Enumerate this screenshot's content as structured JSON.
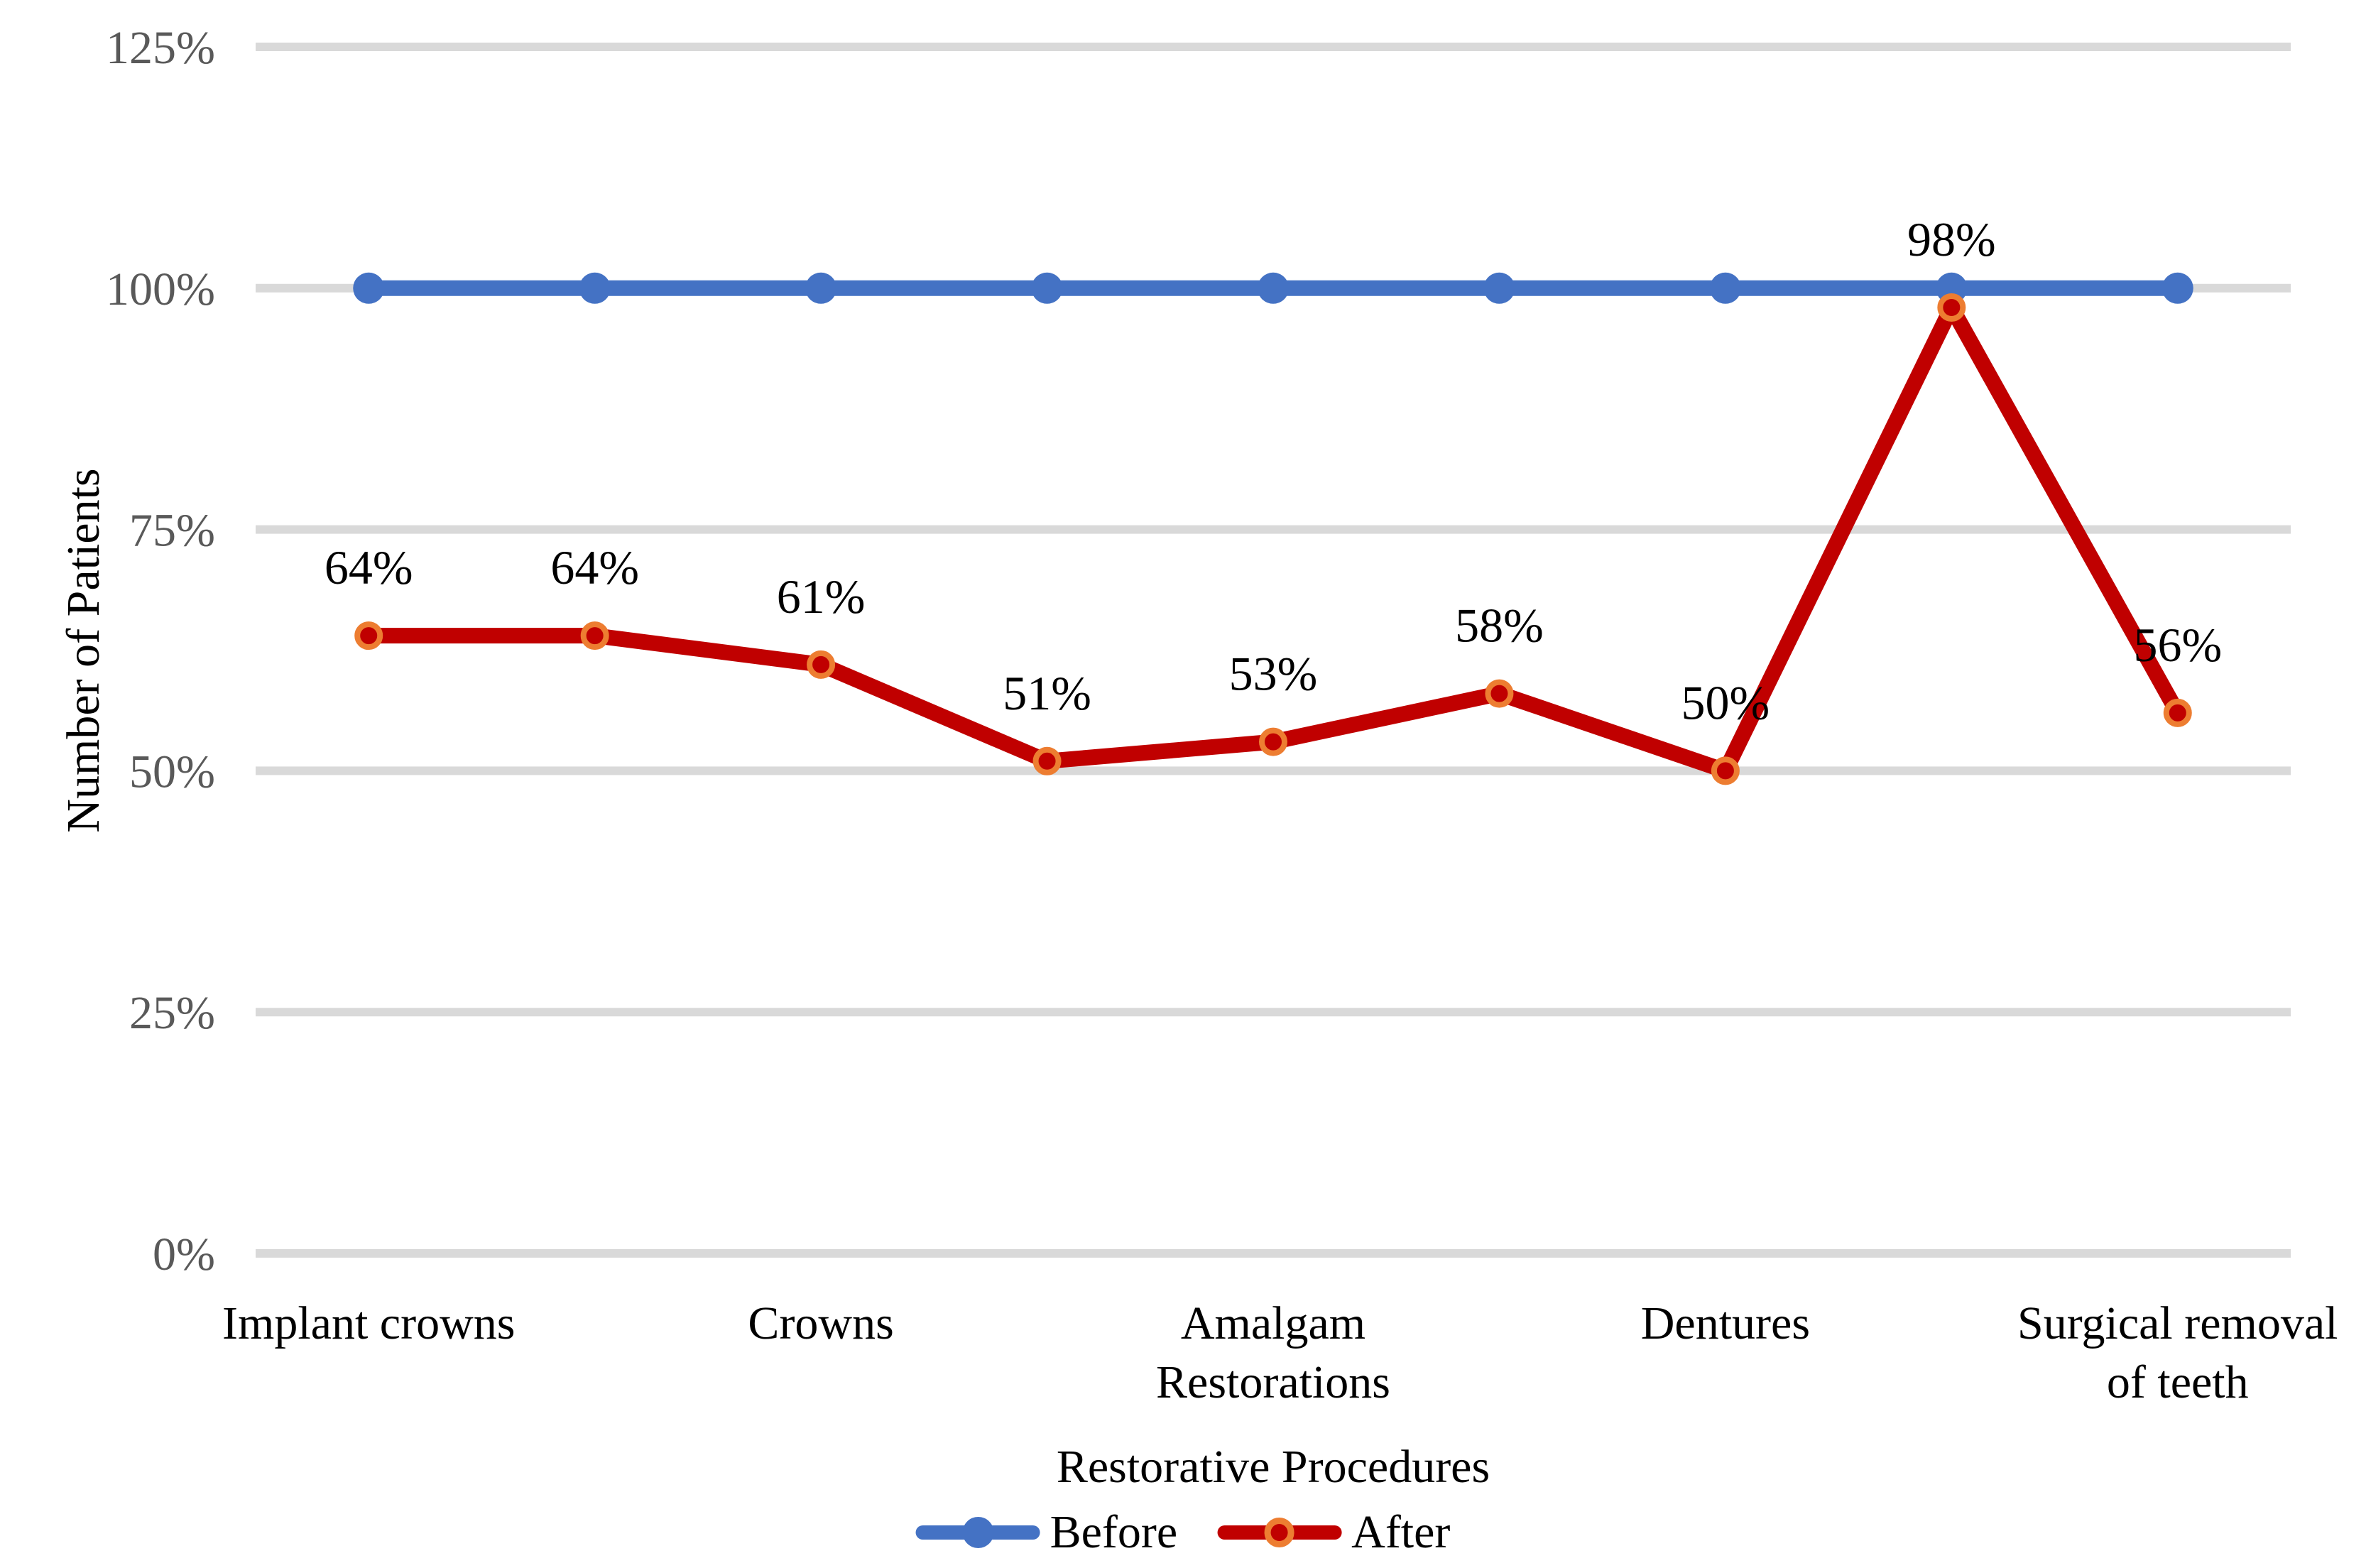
{
  "figure": {
    "background": "#FFFFFF"
  },
  "chart_data": {
    "type": "line",
    "title": "",
    "xlabel": "Restorative Procedures",
    "ylabel": "Number of Patients",
    "ylim": [
      0,
      125
    ],
    "grid": true,
    "legend_position": "bottom",
    "n_points": 9,
    "y_ticks": [
      {
        "value": 0,
        "label": "0%"
      },
      {
        "value": 25,
        "label": "25%"
      },
      {
        "value": 50,
        "label": "50%"
      },
      {
        "value": 75,
        "label": "75%"
      },
      {
        "value": 100,
        "label": "100%"
      },
      {
        "value": 125,
        "label": "125%"
      }
    ],
    "x_axis_labels": [
      {
        "slot": 0,
        "lines": [
          "Implant crowns"
        ]
      },
      {
        "slot": 2,
        "lines": [
          "Crowns"
        ]
      },
      {
        "slot": 4,
        "lines": [
          "Amalgam",
          "Restorations"
        ]
      },
      {
        "slot": 6,
        "lines": [
          "Dentures"
        ]
      },
      {
        "slot": 8,
        "lines": [
          "Surgical removal",
          "of teeth"
        ]
      }
    ],
    "series": [
      {
        "name": "Before",
        "color": "#4472C4",
        "marker": "filled-circle",
        "values": [
          100,
          100,
          100,
          100,
          100,
          100,
          100,
          100,
          100
        ],
        "data_labels": []
      },
      {
        "name": "After",
        "color": "#C00000",
        "marker": "ring-circle",
        "marker_ring_color": "#ED7D31",
        "values": [
          64,
          64,
          61,
          51,
          53,
          58,
          50,
          98,
          56
        ],
        "data_labels": [
          "64%",
          "64%",
          "61%",
          "51%",
          "53%",
          "58%",
          "50%",
          "98%",
          "56%"
        ]
      }
    ],
    "colors": {
      "gridline": "#D9D9D9",
      "tick_label": "#595959",
      "text": "#000000"
    }
  }
}
